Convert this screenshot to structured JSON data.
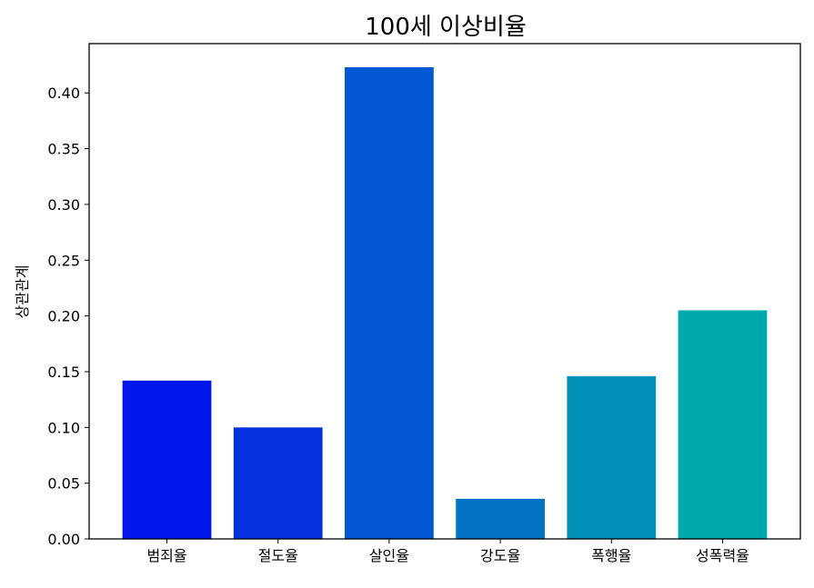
{
  "chart_data": {
    "type": "bar",
    "title": "100세 이상비율",
    "xlabel": "",
    "ylabel": "상관관계",
    "categories": [
      "범죄율",
      "절도율",
      "살인율",
      "강도율",
      "폭행율",
      "성폭력율"
    ],
    "values": [
      0.142,
      0.1,
      0.423,
      0.036,
      0.146,
      0.205
    ],
    "bar_colors": [
      "#0217EE",
      "#0332DE",
      "#0358D3",
      "#0272C5",
      "#0190B8",
      "#00AAAA"
    ],
    "ylim": [
      0,
      0.4442
    ],
    "yticks": [
      0.0,
      0.05,
      0.1,
      0.15,
      0.2,
      0.25,
      0.3,
      0.35,
      0.4
    ],
    "ytick_labels": [
      "0.00",
      "0.05",
      "0.10",
      "0.15",
      "0.20",
      "0.25",
      "0.30",
      "0.35",
      "0.40"
    ],
    "grid": false,
    "legend": "none"
  }
}
